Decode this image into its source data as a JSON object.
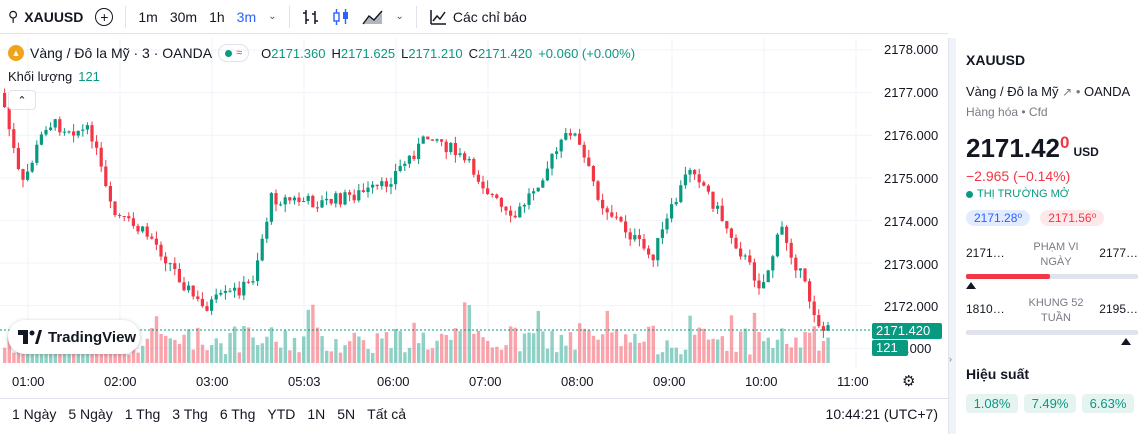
{
  "toolbar": {
    "symbol": "XAUUSD",
    "intervals": [
      "1m",
      "30m",
      "1h",
      "3m"
    ],
    "active_interval": "3m",
    "indicators_label": "Các chỉ báo"
  },
  "legend": {
    "title": "Vàng / Đô la Mỹ · 3 · OANDA",
    "open_label": "O",
    "open": "2171.360",
    "high_label": "H",
    "high": "2171.625",
    "low_label": "L",
    "low": "2171.210",
    "close_label": "C",
    "close": "2171.420",
    "change": "+0.060 (+0.00%)",
    "volume_label": "Khối lượng",
    "volume": "121"
  },
  "logo": "TradingView",
  "price_axis": {
    "labels": [
      "2178.000",
      "2177.000",
      "2176.000",
      "2175.000",
      "2174.000",
      "2173.000",
      "2172.000",
      ".000"
    ],
    "current_price": "2171.420",
    "current_volume": "121"
  },
  "time_axis": [
    "01:00",
    "02:00",
    "03:00",
    "05:03",
    "06:00",
    "07:00",
    "08:00",
    "09:00",
    "10:00",
    "11:00"
  ],
  "ranges": [
    "1 Ngày",
    "5 Ngày",
    "1 Thg",
    "3 Thg",
    "6 Thg",
    "YTD",
    "1N",
    "5N",
    "Tất cả"
  ],
  "clock": "10:44:21 (UTC+7)",
  "panel": {
    "symbol": "XAUUSD",
    "name": "Vàng / Đô la Mỹ",
    "exchange": "OANDA",
    "category": "Hàng hóa",
    "type": "Cfd",
    "price_main": "2171.42",
    "price_sup": "0",
    "currency": "USD",
    "change": "−2.965 (−0.14%)",
    "status": "THỊ TRƯỜNG MỞ",
    "bid": "2171.28⁰",
    "ask": "2171.56⁰",
    "day_low": "2171…",
    "day_high": "2177…",
    "day_label_1": "PHẠM VI",
    "day_label_2": "NGÀY",
    "day_position": 0.0,
    "y52_low": "1810…",
    "y52_high": "2195…",
    "y52_label_1": "KHUNG 52",
    "y52_label_2": "TUẦN",
    "y52_position": 0.96,
    "perf_title": "Hiệu suất",
    "perf": [
      "1.08%",
      "7.49%",
      "6.63%"
    ]
  },
  "colors": {
    "up": "#089981",
    "down": "#f23645",
    "accent": "#2962ff"
  }
}
